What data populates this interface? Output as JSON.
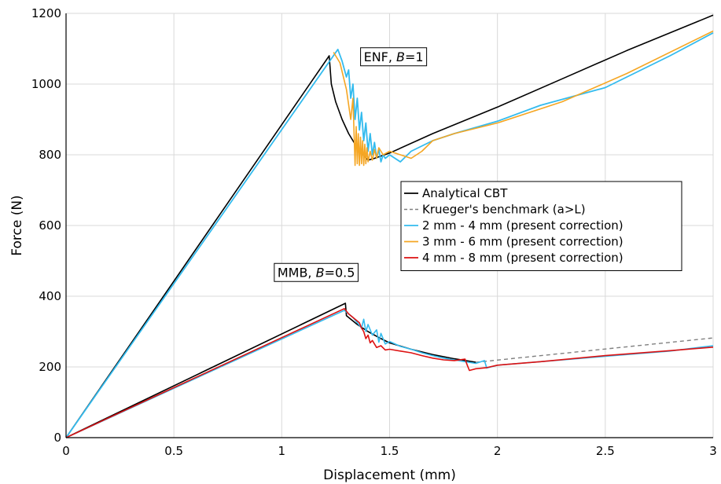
{
  "chart_data": {
    "type": "line",
    "title": "",
    "xlabel": "Displacement (mm)",
    "ylabel": "Force (N)",
    "xlim": [
      0,
      3
    ],
    "ylim": [
      0,
      1200
    ],
    "xticks": [
      0,
      0.5,
      1,
      1.5,
      2,
      2.5,
      3
    ],
    "xtick_labels": [
      "0",
      "0.5",
      "1",
      "1.5",
      "2",
      "2.5",
      "3"
    ],
    "yticks": [
      0,
      200,
      400,
      600,
      800,
      1000,
      1200
    ],
    "ytick_labels": [
      "0",
      "200",
      "400",
      "600",
      "800",
      "1000",
      "1200"
    ],
    "grid": true,
    "legend_position": "right-center",
    "legend": [
      {
        "label": "Analytical CBT",
        "color": "#000000",
        "dash": "solid"
      },
      {
        "label": "Krueger's benchmark (a>L)",
        "color": "#808080",
        "dash": "dashed"
      },
      {
        "label": "2 mm - 4 mm (present correction)",
        "color": "#33bbee",
        "dash": "solid"
      },
      {
        "label": "3 mm - 6 mm (present correction)",
        "color": "#f5a623",
        "dash": "solid"
      },
      {
        "label": "4 mm - 8 mm (present correction)",
        "color": "#dd1111",
        "dash": "solid"
      }
    ],
    "annotations": [
      {
        "id": "enf",
        "prefix": "ENF, ",
        "italic": "B",
        "suffix": "=1",
        "x": 1.38,
        "y": 1065
      },
      {
        "id": "mmb",
        "prefix": "MMB, ",
        "italic": "B",
        "suffix": "=0.5",
        "x": 0.98,
        "y": 455
      }
    ],
    "series": [
      {
        "legend": 0,
        "color": "#000000",
        "dash": "solid",
        "width": 1.6,
        "x": [
          0,
          1.22,
          1.23,
          1.25,
          1.28,
          1.31,
          1.34,
          1.37,
          1.4,
          1.43,
          1.5,
          1.7,
          2.0,
          2.3,
          2.6,
          3.0
        ],
        "y": [
          0,
          1080,
          1000,
          950,
          900,
          860,
          830,
          805,
          785,
          790,
          805,
          860,
          935,
          1015,
          1095,
          1195
        ]
      },
      {
        "legend": 0,
        "color": "#000000",
        "dash": "solid",
        "width": 1.6,
        "x": [
          0,
          1.295,
          1.3,
          1.35,
          1.4,
          1.45,
          1.5,
          1.6,
          1.7,
          1.8,
          1.9
        ],
        "y": [
          0,
          380,
          345,
          320,
          300,
          283,
          268,
          250,
          235,
          223,
          213
        ]
      },
      {
        "legend": 1,
        "color": "#808080",
        "dash": "dashed",
        "width": 1.4,
        "x": [
          1.9,
          3.0
        ],
        "y": [
          213,
          282
        ]
      },
      {
        "legend": 2,
        "color": "#33bbee",
        "dash": "solid",
        "width": 1.8,
        "x": [
          0,
          1.26,
          1.28,
          1.3,
          1.31,
          1.32,
          1.33,
          1.34,
          1.35,
          1.36,
          1.37,
          1.38,
          1.39,
          1.4,
          1.41,
          1.42,
          1.43,
          1.44,
          1.45,
          1.46,
          1.47,
          1.48,
          1.49,
          1.5,
          1.55,
          1.6,
          1.7,
          1.8,
          2.0,
          2.2,
          2.5,
          2.8,
          3.0
        ],
        "y": [
          0,
          1098,
          1065,
          1020,
          1040,
          960,
          1000,
          900,
          960,
          870,
          920,
          840,
          890,
          810,
          860,
          800,
          835,
          790,
          815,
          780,
          800,
          790,
          795,
          800,
          780,
          810,
          840,
          860,
          895,
          940,
          990,
          1080,
          1145
        ]
      },
      {
        "legend": 2,
        "color": "#33bbee",
        "dash": "solid",
        "width": 1.6,
        "x": [
          0,
          1.29,
          1.31,
          1.33,
          1.35,
          1.37,
          1.38,
          1.39,
          1.4,
          1.42,
          1.44,
          1.45,
          1.46,
          1.48,
          1.5,
          1.55,
          1.6,
          1.65,
          1.7,
          1.75,
          1.8,
          1.85,
          1.9,
          1.94,
          1.95,
          2.0,
          2.2,
          2.5,
          2.8,
          3.0
        ],
        "y": [
          0,
          360,
          350,
          340,
          325,
          310,
          335,
          300,
          320,
          290,
          305,
          270,
          295,
          265,
          272,
          258,
          250,
          240,
          232,
          225,
          220,
          215,
          210,
          218,
          197,
          205,
          215,
          230,
          245,
          260
        ]
      },
      {
        "legend": 3,
        "color": "#f5a623",
        "dash": "solid",
        "width": 1.6,
        "x": [
          1.24,
          1.27,
          1.3,
          1.32,
          1.33,
          1.34,
          1.345,
          1.35,
          1.355,
          1.36,
          1.365,
          1.37,
          1.375,
          1.38,
          1.385,
          1.39,
          1.395,
          1.4,
          1.41,
          1.42,
          1.43,
          1.44,
          1.45,
          1.47,
          1.5,
          1.55,
          1.6,
          1.65,
          1.7,
          1.8,
          2.0,
          2.3,
          2.6,
          3.0
        ],
        "y": [
          1090,
          1060,
          985,
          900,
          960,
          770,
          880,
          775,
          860,
          770,
          850,
          775,
          840,
          770,
          830,
          775,
          820,
          780,
          810,
          785,
          815,
          790,
          820,
          800,
          810,
          800,
          790,
          810,
          840,
          860,
          890,
          950,
          1030,
          1150
        ]
      },
      {
        "legend": 4,
        "color": "#dd1111",
        "dash": "solid",
        "width": 1.6,
        "x": [
          0,
          1.29,
          1.31,
          1.34,
          1.36,
          1.37,
          1.38,
          1.39,
          1.4,
          1.41,
          1.42,
          1.44,
          1.46,
          1.48,
          1.5,
          1.55,
          1.6,
          1.65,
          1.7,
          1.75,
          1.8,
          1.85,
          1.86,
          1.87,
          1.9,
          1.95,
          2.0,
          2.2,
          2.5,
          2.8,
          3.0
        ],
        "y": [
          0,
          365,
          350,
          335,
          325,
          310,
          300,
          280,
          290,
          268,
          275,
          255,
          260,
          248,
          250,
          245,
          240,
          232,
          225,
          220,
          218,
          222,
          205,
          190,
          195,
          198,
          205,
          215,
          232,
          246,
          256
        ]
      }
    ]
  }
}
